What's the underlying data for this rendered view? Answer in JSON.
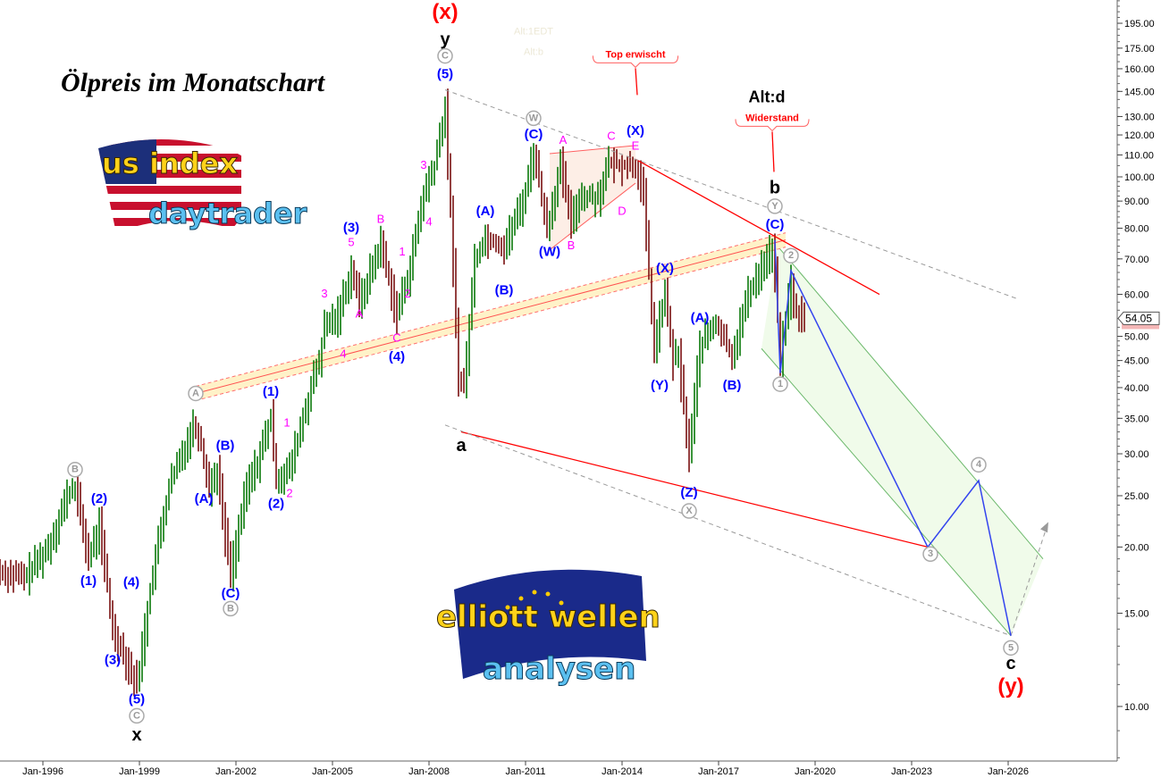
{
  "title": "Ölpreis im Monatschart",
  "logos": {
    "us_index": [
      "us index",
      "daytrader"
    ],
    "elliott": [
      "elliott wellen",
      "analysen"
    ]
  },
  "colors": {
    "up": "#0a7a0a",
    "down": "#7a1010",
    "wave_blue": "#0000ff",
    "wave_magenta": "#ff00ff",
    "red": "#ff0000",
    "gray": "#9a9a9a",
    "channel_fill": "#fff2c8",
    "triangle_fill": "#fdeee6",
    "projection_fill": "#f0fbea"
  },
  "price_label": "54.05",
  "chart_data": {
    "type": "bar",
    "series_kind": "monthly OHLC",
    "y_scale": "log",
    "ylim": [
      8,
      215
    ],
    "xlim": [
      "1994-09",
      "2029-10"
    ],
    "grid": false,
    "x_ticks": [
      "Jan-1996",
      "Jan-1999",
      "Jan-2002",
      "Jan-2005",
      "Jan-2008",
      "Jan-2011",
      "Jan-2014",
      "Jan-2017",
      "Jan-2020",
      "Jan-2023",
      "Jan-2026"
    ],
    "y_ticks": [
      "195.00",
      "175.00",
      "160.00",
      "145.00",
      "130.00",
      "120.00",
      "110.00",
      "100.00",
      "90.00",
      "80.00",
      "70.00",
      "60.00",
      "50.00",
      "45.00",
      "40.00",
      "35.00",
      "30.00",
      "25.00",
      "20.00",
      "15.00",
      "10.00"
    ],
    "close_anchors": [
      [
        "1994-09",
        18
      ],
      [
        "1995-06",
        17.5
      ],
      [
        "1996-03",
        20
      ],
      [
        "1996-10",
        25
      ],
      [
        "1997-01",
        26
      ],
      [
        "1997-06",
        19
      ],
      [
        "1997-10",
        22
      ],
      [
        "1998-03",
        14
      ],
      [
        "1998-06",
        13
      ],
      [
        "1998-12",
        11
      ],
      [
        "1999-06",
        18
      ],
      [
        "1999-12",
        26
      ],
      [
        "2000-09",
        34
      ],
      [
        "2000-11",
        33
      ],
      [
        "2001-03",
        26
      ],
      [
        "2001-06",
        28
      ],
      [
        "2001-09",
        21
      ],
      [
        "2001-11",
        18
      ],
      [
        "2002-05",
        26
      ],
      [
        "2002-09",
        29
      ],
      [
        "2003-02",
        35
      ],
      [
        "2003-04",
        27
      ],
      [
        "2003-09",
        28
      ],
      [
        "2004-05",
        40
      ],
      [
        "2004-08",
        45
      ],
      [
        "2004-10",
        52
      ],
      [
        "2005-03",
        55
      ],
      [
        "2005-08",
        67
      ],
      [
        "2005-11",
        58
      ],
      [
        "2006-07",
        75
      ],
      [
        "2007-01",
        55
      ],
      [
        "2007-06",
        68
      ],
      [
        "2007-11",
        93
      ],
      [
        "2008-03",
        105
      ],
      [
        "2008-07",
        135
      ],
      [
        "2008-10",
        68
      ],
      [
        "2008-12",
        42
      ],
      [
        "2009-02",
        40
      ],
      [
        "2009-06",
        70
      ],
      [
        "2009-10",
        77
      ],
      [
        "2010-05",
        74
      ],
      [
        "2010-12",
        90
      ],
      [
        "2011-04",
        112
      ],
      [
        "2011-09",
        80
      ],
      [
        "2012-02",
        105
      ],
      [
        "2012-06",
        82
      ],
      [
        "2012-09",
        92
      ],
      [
        "2013-04",
        92
      ],
      [
        "2013-08",
        106
      ],
      [
        "2014-06",
        105
      ],
      [
        "2014-09",
        92
      ],
      [
        "2014-12",
        55
      ],
      [
        "2015-01",
        48
      ],
      [
        "2015-05",
        60
      ],
      [
        "2015-08",
        45
      ],
      [
        "2015-10",
        46
      ],
      [
        "2016-01",
        33
      ],
      [
        "2016-02",
        30
      ],
      [
        "2016-06",
        48
      ],
      [
        "2016-12",
        53
      ],
      [
        "2017-06",
        46
      ],
      [
        "2017-12",
        60
      ],
      [
        "2018-05",
        68
      ],
      [
        "2018-09",
        73
      ],
      [
        "2018-10",
        65
      ],
      [
        "2018-12",
        45
      ],
      [
        "2019-04",
        64
      ],
      [
        "2019-05",
        56
      ],
      [
        "2019-08",
        55
      ],
      [
        "2019-09",
        54.05
      ]
    ],
    "lines": {
      "channel_center": [
        [
          "2000-10",
          39
        ],
        [
          "2019-02",
          76
        ]
      ],
      "resistance_upper": [
        [
          "2014-06",
          108
        ],
        [
          "2022-01",
          60
        ]
      ],
      "support_lower": [
        [
          "2009-01",
          33
        ],
        [
          "2023-07",
          20
        ]
      ],
      "dashed_upper": [
        [
          "2008-07",
          146
        ],
        [
          "2026-05",
          58.7
        ]
      ],
      "dashed_lower": [
        [
          "2008-07",
          34
        ],
        [
          "2026-02",
          13.6
        ]
      ],
      "projection_path": [
        [
          "2018-10",
          76
        ],
        [
          "2018-12",
          42.6
        ],
        [
          "2019-04",
          66.5
        ],
        [
          "2023-07",
          20
        ],
        [
          "2025-02",
          26.7
        ],
        [
          "2026-02",
          13.6
        ]
      ],
      "projection_channel": [
        [
          "2018-05",
          47.4
        ],
        [
          "2026-02",
          13.6
        ],
        [
          "2027-02",
          19
        ],
        [
          "2018-11",
          74
        ]
      ],
      "projection_arrow": [
        [
          "2026-02",
          13.6
        ],
        [
          "2027-04",
          22.3
        ]
      ],
      "triangle": [
        [
          "2011-10",
          110.6
        ],
        [
          "2014-06",
          114.6
        ],
        [
          "2014-06",
          97.3
        ],
        [
          "2011-10",
          72.8
        ]
      ]
    },
    "annotations": [
      {
        "text": "(x)",
        "date": "2008-07",
        "price": 204,
        "style": "red-big"
      },
      {
        "text": "y",
        "date": "2008-07",
        "price": 181,
        "style": "black"
      },
      {
        "text": "C",
        "date": "2008-07",
        "price": 170,
        "style": "circle"
      },
      {
        "text": "(5)",
        "date": "2008-07",
        "price": 156,
        "style": "blue"
      },
      {
        "text": "Alt:1EDT",
        "date": "2011-04",
        "price": 188,
        "style": "faint"
      },
      {
        "text": "Alt:b",
        "date": "2011-04",
        "price": 172,
        "style": "faint"
      },
      {
        "text": "Top erwischt",
        "date": "2014-06",
        "price": 170,
        "style": "callout"
      },
      {
        "text": "Alt:d",
        "date": "2018-07",
        "price": 141,
        "style": "black-mid"
      },
      {
        "text": "Widerstand",
        "date": "2018-09",
        "price": 129,
        "style": "callout"
      },
      {
        "text": "b",
        "date": "2018-10",
        "price": 95,
        "style": "black"
      },
      {
        "text": "Y",
        "date": "2018-10",
        "price": 88,
        "style": "circle"
      },
      {
        "text": "(C)",
        "date": "2018-10",
        "price": 81,
        "style": "blue"
      },
      {
        "text": "2",
        "date": "2019-04",
        "price": 71,
        "style": "circle"
      },
      {
        "text": "W",
        "date": "2011-04",
        "price": 129,
        "style": "circle"
      },
      {
        "text": "(C)",
        "date": "2011-04",
        "price": 120,
        "style": "blue"
      },
      {
        "text": "A",
        "date": "2012-03",
        "price": 117,
        "style": "magenta"
      },
      {
        "text": "C",
        "date": "2013-09",
        "price": 119,
        "style": "magenta"
      },
      {
        "text": "(X)",
        "date": "2014-06",
        "price": 122,
        "style": "blue"
      },
      {
        "text": "E",
        "date": "2014-06",
        "price": 114,
        "style": "magenta"
      },
      {
        "text": "D",
        "date": "2014-01",
        "price": 86,
        "style": "magenta"
      },
      {
        "text": "B",
        "date": "2012-06",
        "price": 74,
        "style": "magenta"
      },
      {
        "text": "(W)",
        "date": "2011-10",
        "price": 72,
        "style": "blue"
      },
      {
        "text": "(A)",
        "date": "2009-10",
        "price": 86,
        "style": "blue"
      },
      {
        "text": "(B)",
        "date": "2010-05",
        "price": 61,
        "style": "blue"
      },
      {
        "text": "(X)",
        "date": "2015-05",
        "price": 67,
        "style": "blue"
      },
      {
        "text": "(Y)",
        "date": "2015-03",
        "price": 40.3,
        "style": "blue"
      },
      {
        "text": "(A)",
        "date": "2016-06",
        "price": 54,
        "style": "blue"
      },
      {
        "text": "(B)",
        "date": "2017-06",
        "price": 40.3,
        "style": "blue"
      },
      {
        "text": "(Z)",
        "date": "2016-02",
        "price": 25.3,
        "style": "blue"
      },
      {
        "text": "X",
        "date": "2016-02",
        "price": 23.4,
        "style": "circle"
      },
      {
        "text": "1",
        "date": "2018-12",
        "price": 40.6,
        "style": "circle"
      },
      {
        "text": "a",
        "date": "2009-01",
        "price": 31,
        "style": "black"
      },
      {
        "text": "(3)",
        "date": "2005-08",
        "price": 80,
        "style": "blue"
      },
      {
        "text": "5",
        "date": "2005-08",
        "price": 75,
        "style": "magenta"
      },
      {
        "text": "B",
        "date": "2006-07",
        "price": 83,
        "style": "magenta"
      },
      {
        "text": "3",
        "date": "2004-10",
        "price": 60,
        "style": "magenta"
      },
      {
        "text": "A",
        "date": "2005-11",
        "price": 55,
        "style": "magenta"
      },
      {
        "text": "1",
        "date": "2007-03",
        "price": 72,
        "style": "magenta"
      },
      {
        "text": "2",
        "date": "2007-05",
        "price": 60,
        "style": "magenta"
      },
      {
        "text": "4",
        "date": "2005-05",
        "price": 46.2,
        "style": "magenta"
      },
      {
        "text": "C",
        "date": "2007-01",
        "price": 49.5,
        "style": "magenta"
      },
      {
        "text": "(4)",
        "date": "2007-01",
        "price": 45.6,
        "style": "blue"
      },
      {
        "text": "3",
        "date": "2007-11",
        "price": 105,
        "style": "magenta"
      },
      {
        "text": "4",
        "date": "2008-01",
        "price": 82,
        "style": "magenta"
      },
      {
        "text": "(1)",
        "date": "2003-02",
        "price": 39.2,
        "style": "blue"
      },
      {
        "text": "1",
        "date": "2003-08",
        "price": 34.2,
        "style": "magenta"
      },
      {
        "text": "2",
        "date": "2003-09",
        "price": 25.2,
        "style": "magenta"
      },
      {
        "text": "A",
        "date": "2000-10",
        "price": 39,
        "style": "circle"
      },
      {
        "text": "(B)",
        "date": "2001-09",
        "price": 31,
        "style": "blue"
      },
      {
        "text": "(A)",
        "date": "2001-01",
        "price": 24.6,
        "style": "blue"
      },
      {
        "text": "(2)",
        "date": "2003-04",
        "price": 24.1,
        "style": "blue"
      },
      {
        "text": "(C)",
        "date": "2001-11",
        "price": 16.3,
        "style": "blue"
      },
      {
        "text": "B",
        "date": "2001-11",
        "price": 15.3,
        "style": "circle"
      },
      {
        "text": "B",
        "date": "1997-01",
        "price": 28,
        "style": "circle"
      },
      {
        "text": "(2)",
        "date": "1997-10",
        "price": 24.6,
        "style": "blue"
      },
      {
        "text": "(1)",
        "date": "1997-06",
        "price": 17.2,
        "style": "blue"
      },
      {
        "text": "(4)",
        "date": "1998-10",
        "price": 17.1,
        "style": "blue"
      },
      {
        "text": "(3)",
        "date": "1998-03",
        "price": 12.2,
        "style": "blue"
      },
      {
        "text": "(5)",
        "date": "1998-12",
        "price": 10.3,
        "style": "blue"
      },
      {
        "text": "C",
        "date": "1998-12",
        "price": 9.6,
        "style": "circle"
      },
      {
        "text": "x",
        "date": "1998-12",
        "price": 8.8,
        "style": "black"
      },
      {
        "text": "3",
        "date": "2023-08",
        "price": 19.4,
        "style": "circle"
      },
      {
        "text": "4",
        "date": "2025-02",
        "price": 28.6,
        "style": "circle"
      },
      {
        "text": "5",
        "date": "2026-02",
        "price": 12.9,
        "style": "circle"
      },
      {
        "text": "c",
        "date": "2026-02",
        "price": 12.0,
        "style": "black"
      },
      {
        "text": "(y)",
        "date": "2026-02",
        "price": 11.2,
        "style": "red-big"
      }
    ]
  }
}
